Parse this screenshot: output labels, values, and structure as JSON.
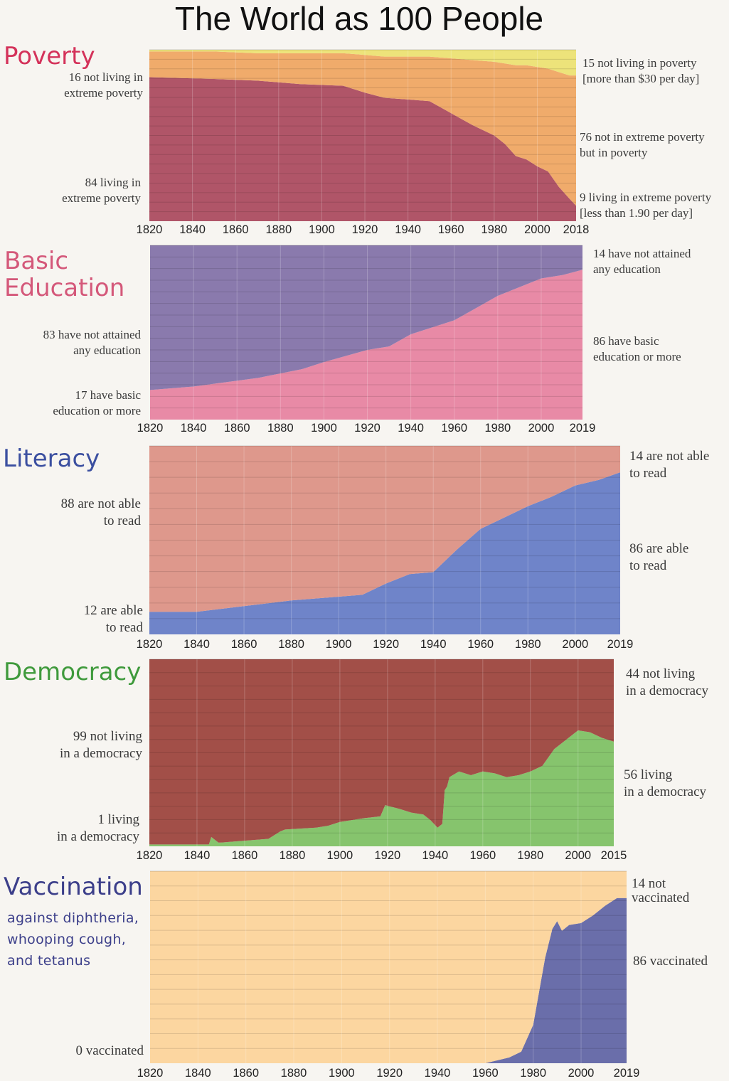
{
  "title": "The World as 100 People",
  "chart_data": [
    {
      "id": "poverty",
      "type": "area",
      "title": "Poverty",
      "title_color": "#d4325a",
      "ylim": [
        0,
        100
      ],
      "x": [
        1820,
        1850,
        1870,
        1890,
        1910,
        1920,
        1929,
        1940,
        1950,
        1960,
        1970,
        1980,
        1985,
        1990,
        1995,
        2000,
        2005,
        2010,
        2015,
        2018
      ],
      "series": [
        {
          "name": "living in extreme poverty",
          "color": "#b05568",
          "values": [
            84,
            83,
            82,
            80,
            79,
            75,
            72,
            71,
            70,
            63,
            56,
            50,
            45,
            38,
            36,
            32,
            29,
            20,
            13,
            9
          ]
        },
        {
          "name": "in poverty but not extreme",
          "color": "#f0ab6b",
          "values": [
            15,
            16,
            16,
            18,
            19,
            22,
            24,
            25,
            26,
            32,
            38,
            43,
            47,
            53,
            55,
            58,
            60,
            67,
            72,
            76
          ]
        },
        {
          "name": "not living in poverty",
          "color": "#ede37a",
          "values": [
            1,
            1,
            2,
            2,
            2,
            3,
            4,
            4,
            4,
            5,
            6,
            7,
            8,
            9,
            9,
            10,
            11,
            13,
            15,
            15
          ]
        }
      ],
      "ticks": [
        "1820",
        "1840",
        "1860",
        "1880",
        "1900",
        "1920",
        "1940",
        "1960",
        "1980",
        "2000",
        "2018"
      ],
      "tick_values": [
        1820,
        1840,
        1860,
        1880,
        1900,
        1920,
        1940,
        1960,
        1980,
        2000,
        2018
      ],
      "left_labels": [
        "16 not living in\nextreme poverty",
        "84 living in\nextreme poverty"
      ],
      "right_labels": [
        "15 not living in poverty\n[more than $30 per day]",
        "76 not in extreme poverty\nbut in poverty",
        "9 living in extreme poverty\n[less than 1.90 per day]"
      ]
    },
    {
      "id": "education",
      "type": "area",
      "title": "Basic\nEducation",
      "title_color": "#d4587a",
      "ylim": [
        0,
        100
      ],
      "x": [
        1820,
        1840,
        1870,
        1890,
        1900,
        1920,
        1930,
        1940,
        1960,
        1970,
        1980,
        1990,
        2000,
        2010,
        2019
      ],
      "series": [
        {
          "name": "have basic education or more",
          "color": "#e88aa6",
          "values": [
            17,
            19,
            24,
            29,
            33,
            40,
            42,
            49,
            57,
            64,
            71,
            76,
            81,
            83,
            86
          ]
        },
        {
          "name": "have not attained any education",
          "color": "#8a7aad",
          "values": [
            83,
            81,
            76,
            71,
            67,
            60,
            58,
            51,
            43,
            36,
            29,
            24,
            19,
            17,
            14
          ]
        }
      ],
      "ticks": [
        "1820",
        "1840",
        "1860",
        "1880",
        "1900",
        "1920",
        "1940",
        "1960",
        "1980",
        "2000",
        "2019"
      ],
      "tick_values": [
        1820,
        1840,
        1860,
        1880,
        1900,
        1920,
        1940,
        1960,
        1980,
        2000,
        2019
      ],
      "left_labels": [
        "83 have not attained\nany education",
        "17 have basic\neducation or more"
      ],
      "right_labels": [
        "14 have not attained\nany education",
        "86 have basic\neducation or more"
      ]
    },
    {
      "id": "literacy",
      "type": "area",
      "title": "Literacy",
      "title_color": "#3b4fa0",
      "ylim": [
        0,
        100
      ],
      "x": [
        1820,
        1840,
        1860,
        1880,
        1900,
        1910,
        1920,
        1930,
        1940,
        1950,
        1960,
        1970,
        1980,
        1990,
        2000,
        2010,
        2019
      ],
      "series": [
        {
          "name": "are able to read",
          "color": "#6f84c9",
          "values": [
            12,
            12,
            15,
            18,
            20,
            21,
            27,
            32,
            33,
            45,
            56,
            62,
            68,
            73,
            79,
            82,
            86
          ]
        },
        {
          "name": "are not able to read",
          "color": "#de988c",
          "values": [
            88,
            88,
            85,
            82,
            80,
            79,
            73,
            68,
            67,
            55,
            44,
            38,
            32,
            27,
            21,
            18,
            14
          ]
        }
      ],
      "ticks": [
        "1820",
        "1840",
        "1860",
        "1880",
        "1900",
        "1920",
        "1940",
        "1960",
        "1980",
        "2000",
        "2019"
      ],
      "tick_values": [
        1820,
        1840,
        1860,
        1880,
        1900,
        1920,
        1940,
        1960,
        1980,
        2000,
        2019
      ],
      "left_labels": [
        "88 are not able\nto read",
        "12 are able\nto read"
      ],
      "right_labels": [
        "14 are not able\nto read",
        "86 are able\nto read"
      ]
    },
    {
      "id": "democracy",
      "type": "area",
      "title": "Democracy",
      "title_color": "#3f9a3c",
      "ylim": [
        0,
        100
      ],
      "x": [
        1820,
        1845,
        1846,
        1849,
        1850,
        1870,
        1875,
        1877,
        1890,
        1895,
        1900,
        1910,
        1917,
        1919,
        1922,
        1925,
        1930,
        1935,
        1938,
        1941,
        1943,
        1944,
        1945,
        1946,
        1950,
        1955,
        1960,
        1965,
        1970,
        1975,
        1980,
        1985,
        1990,
        1995,
        2000,
        2005,
        2010,
        2015
      ],
      "series": [
        {
          "name": "living in a democracy",
          "color": "#86c46d",
          "values": [
            1,
            1,
            5,
            2,
            2,
            4,
            8,
            9,
            10,
            11,
            13,
            15,
            16,
            22,
            21,
            20,
            18,
            17,
            14,
            10,
            12,
            30,
            32,
            37,
            40,
            38,
            40,
            39,
            37,
            38,
            40,
            43,
            52,
            57,
            62,
            61,
            58,
            56
          ]
        },
        {
          "name": "not living in a democracy",
          "color": "#a24f48",
          "values": [
            99,
            99,
            95,
            98,
            98,
            96,
            92,
            91,
            90,
            89,
            87,
            85,
            84,
            78,
            79,
            80,
            82,
            83,
            86,
            90,
            88,
            70,
            68,
            63,
            60,
            62,
            60,
            61,
            63,
            62,
            60,
            57,
            48,
            43,
            38,
            39,
            42,
            44
          ]
        }
      ],
      "ticks": [
        "1820",
        "1840",
        "1860",
        "1880",
        "1900",
        "1920",
        "1940",
        "1960",
        "1980",
        "2000",
        "2015"
      ],
      "tick_values": [
        1820,
        1840,
        1860,
        1880,
        1900,
        1920,
        1940,
        1960,
        1980,
        2000,
        2015
      ],
      "left_labels": [
        "99 not living\nin a democracy",
        "1 living\nin a democracy"
      ],
      "right_labels": [
        "44 not living\nin a democracy",
        "56 living\nin a democracy"
      ]
    },
    {
      "id": "vaccination",
      "type": "area",
      "title": "Vaccination",
      "subtitle": "against diphtheria,\nwhooping cough,\nand tetanus",
      "title_color": "#3c3f8a",
      "ylim": [
        0,
        100
      ],
      "x": [
        1820,
        1960,
        1970,
        1975,
        1980,
        1983,
        1985,
        1988,
        1990,
        1992,
        1995,
        2000,
        2005,
        2010,
        2015,
        2019
      ],
      "series": [
        {
          "name": "vaccinated",
          "color": "#6a6eaa",
          "values": [
            0,
            0,
            3,
            6,
            20,
            41,
            55,
            70,
            74,
            69,
            72,
            73,
            77,
            82,
            86,
            86
          ]
        },
        {
          "name": "not vaccinated",
          "color": "#fcd6a0",
          "values": [
            100,
            100,
            97,
            94,
            80,
            59,
            45,
            30,
            26,
            31,
            28,
            27,
            23,
            18,
            14,
            14
          ]
        }
      ],
      "ticks": [
        "1820",
        "1840",
        "1860",
        "1880",
        "1900",
        "1920",
        "1940",
        "1960",
        "1980",
        "2000",
        "2019"
      ],
      "tick_values": [
        1820,
        1840,
        1860,
        1880,
        1900,
        1920,
        1940,
        1960,
        1980,
        2000,
        2019
      ],
      "left_labels": [
        "0 vaccinated"
      ],
      "right_labels": [
        "14 not\nvaccinated",
        "86 vaccinated"
      ]
    }
  ]
}
